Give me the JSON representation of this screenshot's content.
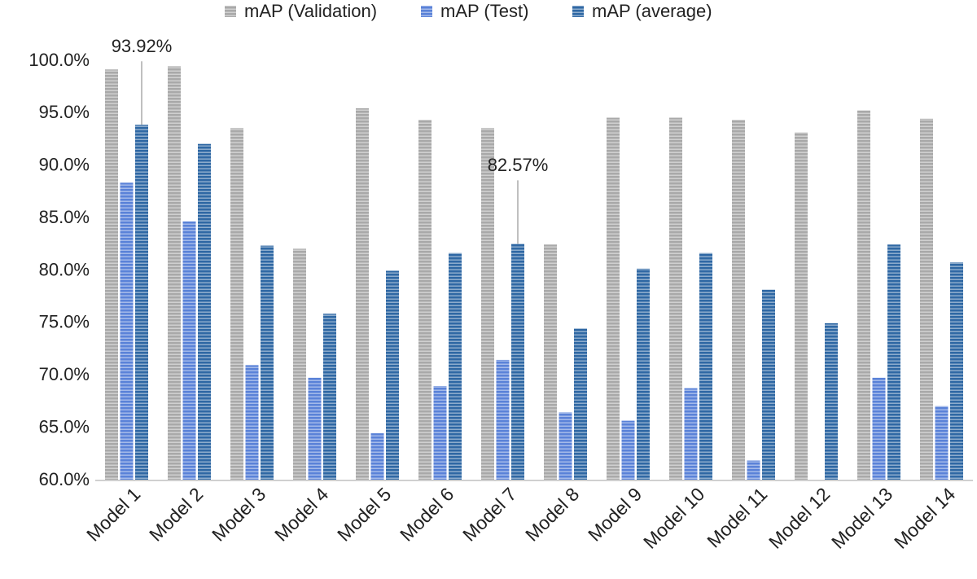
{
  "chart_data": {
    "type": "bar",
    "categories": [
      "Model 1",
      "Model 2",
      "Model 3",
      "Model 4",
      "Model 5",
      "Model 6",
      "Model 7",
      "Model 8",
      "Model 9",
      "Model 10",
      "Model 11",
      "Model 12",
      "Model 13",
      "Model 14"
    ],
    "series": [
      {
        "name": "mAP (Validation)",
        "color": "#a9a9a9",
        "values": [
          99.2,
          99.5,
          93.6,
          82.1,
          95.5,
          94.4,
          93.6,
          82.5,
          94.6,
          94.6,
          94.4,
          93.2,
          95.3,
          94.5
        ]
      },
      {
        "name": "mAP (Test)",
        "color": "#5a82d8",
        "values": [
          88.4,
          84.7,
          71.0,
          69.8,
          64.5,
          69.0,
          71.5,
          66.5,
          65.7,
          68.8,
          61.9,
          60.0,
          69.8,
          67.1
        ]
      },
      {
        "name": "mAP (average)",
        "color": "#2f68a4",
        "values": [
          93.92,
          92.1,
          82.4,
          75.9,
          80.0,
          81.7,
          82.57,
          74.5,
          80.2,
          81.7,
          78.2,
          75.0,
          82.5,
          80.8
        ],
        "value_labels": [
          "93.92%",
          null,
          null,
          null,
          null,
          null,
          "82.57%",
          null,
          null,
          null,
          null,
          null,
          null,
          null
        ]
      }
    ],
    "ylim": [
      60,
      100
    ],
    "yticks": [
      {
        "value": 60,
        "label": "60.0%"
      },
      {
        "value": 65,
        "label": "65.0%"
      },
      {
        "value": 70,
        "label": "70.0%"
      },
      {
        "value": 75,
        "label": "75.0%"
      },
      {
        "value": 80,
        "label": "80.0%"
      },
      {
        "value": 85,
        "label": "85.0%"
      },
      {
        "value": 90,
        "label": "90.0%"
      },
      {
        "value": 95,
        "label": "95.0%"
      },
      {
        "value": 100,
        "label": "100.0%"
      }
    ],
    "grid": false,
    "legend": "top"
  }
}
